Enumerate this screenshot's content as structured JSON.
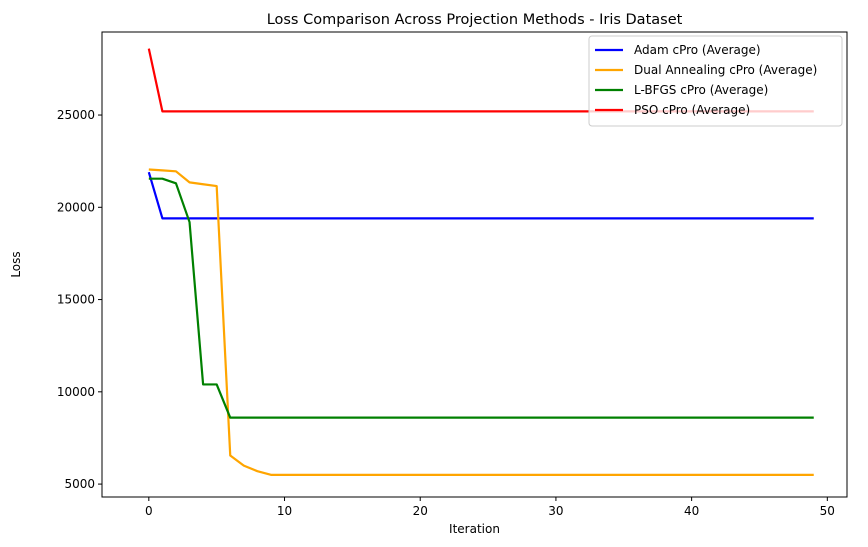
{
  "chart_data": {
    "type": "line",
    "title": "Loss Comparison Across Projection Methods - Iris Dataset",
    "xlabel": "Iteration",
    "ylabel": "Loss",
    "xlim": [
      -3.45,
      51.45
    ],
    "ylim": [
      4300,
      29500
    ],
    "xticks": [
      0,
      10,
      20,
      30,
      40,
      50
    ],
    "yticks": [
      5000,
      10000,
      15000,
      20000,
      25000
    ],
    "grid": false,
    "legend_position": "top-right",
    "x": [
      0,
      1,
      2,
      3,
      4,
      5,
      6,
      7,
      8,
      9,
      10,
      11,
      12,
      13,
      14,
      15,
      16,
      17,
      18,
      19,
      20,
      21,
      22,
      23,
      24,
      25,
      26,
      27,
      28,
      29,
      30,
      31,
      32,
      33,
      34,
      35,
      36,
      37,
      38,
      39,
      40,
      41,
      42,
      43,
      44,
      45,
      46,
      47,
      48,
      49
    ],
    "series": [
      {
        "name": "Adam cPro (Average)",
        "color": "#0000ff",
        "values": [
          21900,
          19400,
          19400,
          19400,
          19400,
          19400,
          19400,
          19400,
          19400,
          19400,
          19400,
          19400,
          19400,
          19400,
          19400,
          19400,
          19400,
          19400,
          19400,
          19400,
          19400,
          19400,
          19400,
          19400,
          19400,
          19400,
          19400,
          19400,
          19400,
          19400,
          19400,
          19400,
          19400,
          19400,
          19400,
          19400,
          19400,
          19400,
          19400,
          19400,
          19400,
          19400,
          19400,
          19400,
          19400,
          19400,
          19400,
          19400,
          19400,
          19400
        ]
      },
      {
        "name": "Dual Annealing cPro (Average)",
        "color": "#ffa500",
        "values": [
          22050,
          22000,
          21950,
          21350,
          21250,
          21150,
          6550,
          6000,
          5700,
          5500,
          5500,
          5500,
          5500,
          5500,
          5500,
          5500,
          5500,
          5500,
          5500,
          5500,
          5500,
          5500,
          5500,
          5500,
          5500,
          5500,
          5500,
          5500,
          5500,
          5500,
          5500,
          5500,
          5500,
          5500,
          5500,
          5500,
          5500,
          5500,
          5500,
          5500,
          5500,
          5500,
          5500,
          5500,
          5500,
          5500,
          5500,
          5500,
          5500,
          5500
        ]
      },
      {
        "name": "L-BFGS cPro (Average)",
        "color": "#008000",
        "values": [
          21550,
          21550,
          21300,
          19200,
          10400,
          10400,
          8600,
          8600,
          8600,
          8600,
          8600,
          8600,
          8600,
          8600,
          8600,
          8600,
          8600,
          8600,
          8600,
          8600,
          8600,
          8600,
          8600,
          8600,
          8600,
          8600,
          8600,
          8600,
          8600,
          8600,
          8600,
          8600,
          8600,
          8600,
          8600,
          8600,
          8600,
          8600,
          8600,
          8600,
          8600,
          8600,
          8600,
          8600,
          8600,
          8600,
          8600,
          8600,
          8600,
          8600
        ]
      },
      {
        "name": "PSO cPro (Average)",
        "color": "#ff0000",
        "values": [
          28600,
          25200,
          25200,
          25200,
          25200,
          25200,
          25200,
          25200,
          25200,
          25200,
          25200,
          25200,
          25200,
          25200,
          25200,
          25200,
          25200,
          25200,
          25200,
          25200,
          25200,
          25200,
          25200,
          25200,
          25200,
          25200,
          25200,
          25200,
          25200,
          25200,
          25200,
          25200,
          25200,
          25200,
          25200,
          25200,
          25200,
          25200,
          25200,
          25200,
          25200,
          25200,
          25200,
          25200,
          25200,
          25200,
          25200,
          25200,
          25200,
          25200
        ]
      }
    ]
  }
}
